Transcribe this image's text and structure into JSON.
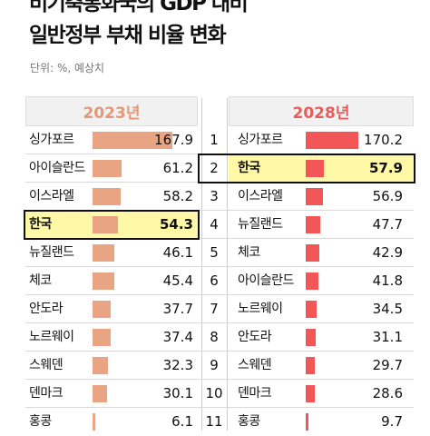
{
  "title": {
    "line1": "비기축통화국의 GDP 대비",
    "line2": "일반정부 부채 비율 변화"
  },
  "unit": "단위: %, 예상치",
  "colors": {
    "bar2023": "#e9a483",
    "bar2028": "#f25656",
    "highlight": "#fff8a6"
  },
  "chart_data": {
    "type": "bar",
    "title": "비기축통화국의 GDP 대비 일반정부 부채 비율 변화",
    "unit": "단위: %, 예상치",
    "highlight": "한국",
    "panels": [
      {
        "year": "2023년",
        "categories": [
          "싱가포르",
          "아이슬란드",
          "이스라엘",
          "한국",
          "뉴질랜드",
          "체코",
          "안도라",
          "노르웨이",
          "스웨덴",
          "덴마크",
          "홍콩"
        ],
        "values": [
          167.9,
          61.2,
          58.2,
          54.3,
          46.1,
          45.4,
          37.7,
          37.4,
          32.3,
          30.1,
          6.1
        ]
      },
      {
        "year": "2028년",
        "categories": [
          "싱가포르",
          "한국",
          "이스라엘",
          "뉴질랜드",
          "체코",
          "아이슬란드",
          "노르웨이",
          "안도라",
          "스웨덴",
          "덴마크",
          "홍콩"
        ],
        "values": [
          170.2,
          57.9,
          56.9,
          47.7,
          42.9,
          41.8,
          34.5,
          31.1,
          29.7,
          28.6,
          9.7
        ]
      }
    ],
    "ranks": [
      "1",
      "2",
      "3",
      "4",
      "5",
      "6",
      "7",
      "8",
      "9",
      "10",
      "11"
    ]
  }
}
